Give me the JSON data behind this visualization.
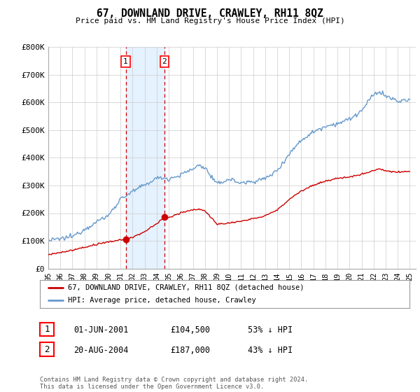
{
  "title": "67, DOWNLAND DRIVE, CRAWLEY, RH11 8QZ",
  "subtitle": "Price paid vs. HM Land Registry's House Price Index (HPI)",
  "ylim": [
    0,
    800000
  ],
  "yticks": [
    0,
    100000,
    200000,
    300000,
    400000,
    500000,
    600000,
    700000,
    800000
  ],
  "ytick_labels": [
    "£0",
    "£100K",
    "£200K",
    "£300K",
    "£400K",
    "£500K",
    "£600K",
    "£700K",
    "£800K"
  ],
  "red_line_color": "#cc0000",
  "blue_line_color": "#6699cc",
  "sale1_x": 2001.42,
  "sale1_y": 104500,
  "sale1_label": "1",
  "sale2_x": 2004.64,
  "sale2_y": 187000,
  "sale2_label": "2",
  "shade_color": "#ddeeff",
  "dashed_color": "#cc0000",
  "legend_box_label1": "67, DOWNLAND DRIVE, CRAWLEY, RH11 8QZ (detached house)",
  "legend_box_label2": "HPI: Average price, detached house, Crawley",
  "table_row1": [
    "1",
    "01-JUN-2001",
    "£104,500",
    "53% ↓ HPI"
  ],
  "table_row2": [
    "2",
    "20-AUG-2004",
    "£187,000",
    "43% ↓ HPI"
  ],
  "footnote": "Contains HM Land Registry data © Crown copyright and database right 2024.\nThis data is licensed under the Open Government Licence v3.0.",
  "background_color": "#ffffff",
  "grid_color": "#cccccc",
  "xlim_left": 1995,
  "xlim_right": 2025.5,
  "xticks": [
    1995,
    1996,
    1997,
    1998,
    1999,
    2000,
    2001,
    2002,
    2003,
    2004,
    2005,
    2006,
    2007,
    2008,
    2009,
    2010,
    2011,
    2012,
    2013,
    2014,
    2015,
    2016,
    2017,
    2018,
    2019,
    2020,
    2021,
    2022,
    2023,
    2024,
    2025
  ],
  "xtick_labels": [
    "95",
    "96",
    "97",
    "98",
    "99",
    "00",
    "01",
    "02",
    "03",
    "04",
    "05",
    "06",
    "07",
    "08",
    "09",
    "10",
    "11",
    "12",
    "13",
    "14",
    "15",
    "16",
    "17",
    "18",
    "19",
    "20",
    "21",
    "22",
    "23",
    "24",
    "25"
  ]
}
